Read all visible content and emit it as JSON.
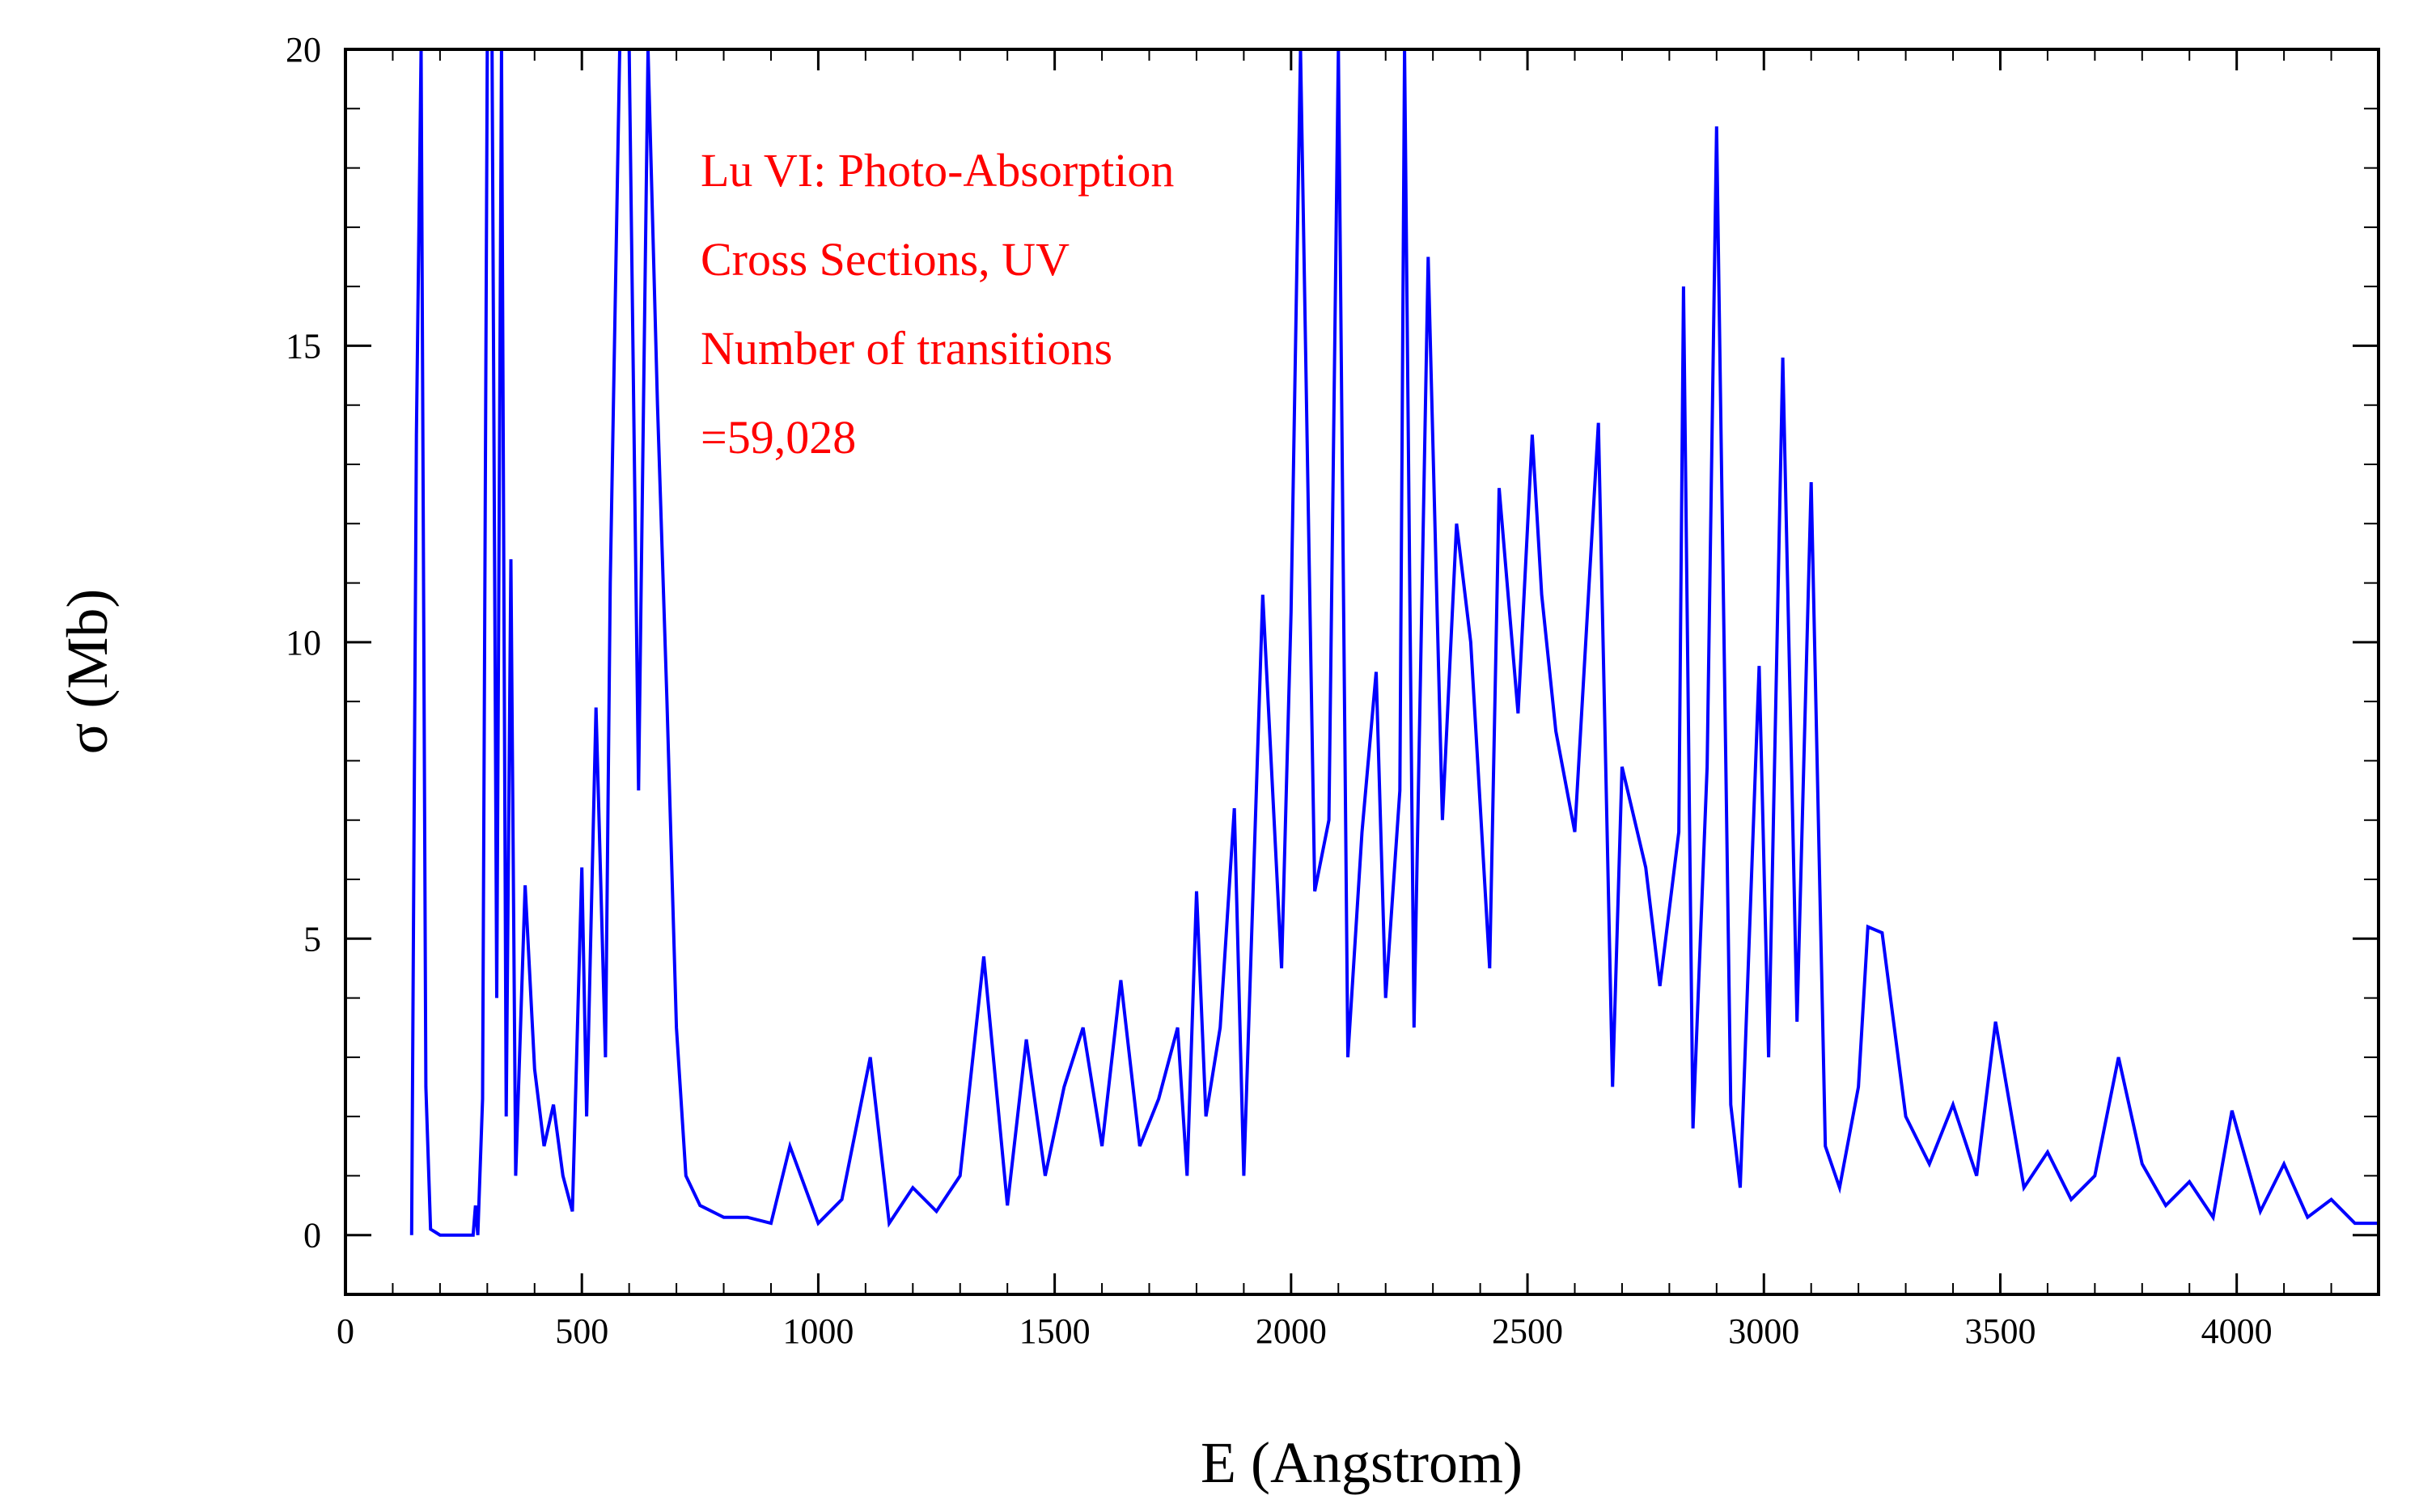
{
  "colors": {
    "series": "#0000ff",
    "annotation": "#ff0000",
    "axis": "#000000",
    "background": "#ffffff"
  },
  "chart_data": {
    "type": "line",
    "title": "",
    "xlabel": "E (Angstrom)",
    "ylabel": "σ (Mb)",
    "xlim": [
      0,
      4300
    ],
    "ylim": [
      -1,
      20
    ],
    "x_ticks": [
      0,
      500,
      1000,
      1500,
      2000,
      2500,
      3000,
      3500,
      4000
    ],
    "x_tick_labels": [
      "0",
      "500",
      "1000",
      "1500",
      "2000",
      "2500",
      "3000",
      "3500",
      "4000"
    ],
    "y_ticks": [
      0,
      5,
      10,
      15,
      20
    ],
    "y_tick_labels": [
      "0",
      "5",
      "10",
      "15",
      "20"
    ],
    "grid": false,
    "legend": "none",
    "annotation_lines": [
      "Lu VI: Photo-Absorption",
      "Cross Sections, UV",
      "Number of transitions",
      "=59,028"
    ],
    "series": [
      {
        "x": [
          140,
          150,
          160,
          170,
          180,
          190,
          200,
          230,
          270,
          275,
          280,
          290,
          300,
          310,
          320,
          330,
          340,
          350,
          360,
          380,
          400,
          420,
          440,
          460,
          480,
          500,
          510,
          530,
          550,
          560,
          580,
          600,
          620,
          640,
          660,
          680,
          700,
          720,
          750,
          800,
          850,
          900,
          940,
          1000,
          1050,
          1110,
          1150,
          1200,
          1250,
          1300,
          1350,
          1400,
          1440,
          1480,
          1520,
          1560,
          1600,
          1640,
          1680,
          1720,
          1760,
          1780,
          1800,
          1820,
          1850,
          1880,
          1900,
          1940,
          1980,
          2000,
          2020,
          2050,
          2080,
          2100,
          2120,
          2150,
          2180,
          2200,
          2230,
          2240,
          2260,
          2290,
          2320,
          2350,
          2380,
          2420,
          2440,
          2480,
          2510,
          2530,
          2560,
          2600,
          2650,
          2680,
          2700,
          2750,
          2780,
          2820,
          2830,
          2850,
          2880,
          2900,
          2930,
          2950,
          2990,
          3010,
          3040,
          3070,
          3100,
          3130,
          3160,
          3200,
          3220,
          3250,
          3300,
          3350,
          3400,
          3450,
          3490,
          3550,
          3600,
          3650,
          3700,
          3750,
          3800,
          3850,
          3900,
          3950,
          3990,
          4050,
          4100,
          4150,
          4200,
          4250,
          4300
        ],
        "y": [
          0.0,
          13.5,
          20.0,
          2.5,
          0.1,
          0.05,
          0.0,
          0.0,
          0.0,
          0.5,
          0.0,
          2.3,
          20.0,
          20.0,
          4.0,
          20.0,
          2.0,
          11.4,
          1.0,
          5.9,
          2.8,
          1.5,
          2.2,
          1.0,
          0.4,
          6.2,
          2.0,
          8.9,
          3.0,
          11.0,
          20.0,
          20.0,
          7.5,
          20.0,
          14.0,
          9.0,
          3.5,
          1.0,
          0.5,
          0.3,
          0.3,
          0.2,
          1.5,
          0.2,
          0.6,
          3.0,
          0.2,
          0.8,
          0.4,
          1.0,
          4.7,
          0.5,
          3.3,
          1.0,
          2.5,
          3.5,
          1.5,
          4.3,
          1.5,
          2.3,
          3.5,
          1.0,
          5.8,
          2.0,
          3.5,
          7.2,
          1.0,
          10.8,
          4.5,
          10.5,
          20.0,
          5.8,
          7.0,
          20.0,
          3.0,
          6.8,
          9.5,
          4.0,
          7.5,
          20.0,
          3.5,
          16.5,
          7.0,
          12.0,
          10.0,
          4.5,
          12.6,
          8.8,
          13.5,
          10.8,
          8.5,
          6.8,
          13.7,
          2.5,
          7.9,
          6.2,
          4.2,
          6.8,
          16.0,
          1.8,
          7.9,
          18.7,
          2.2,
          0.8,
          9.6,
          3.0,
          14.8,
          3.6,
          12.7,
          1.5,
          0.8,
          2.5,
          5.2,
          5.1,
          2.0,
          1.2,
          2.2,
          1.0,
          3.6,
          0.8,
          1.4,
          0.6,
          1.0,
          3.0,
          1.2,
          0.5,
          0.9,
          0.3,
          2.1,
          0.4,
          1.2,
          0.3,
          0.6,
          0.2,
          0.2
        ]
      }
    ]
  }
}
